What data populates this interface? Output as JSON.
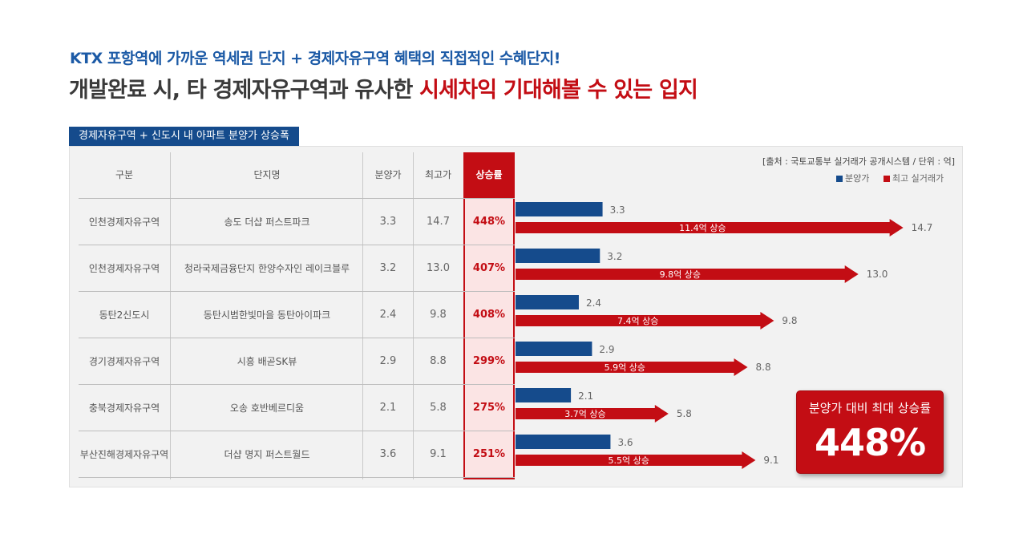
{
  "headline": {
    "line1": "KTX 포항역에 가까운 역세권 단지 + 경제자유구역 혜택의 직접적인 수혜단지!",
    "line2_part1": "개발완료 시, 타 경제자유구역과 유사한 ",
    "line2_highlight": "시세차익 기대해볼 수 있는 입지"
  },
  "table_title": "경제자유구역 + 신도시 내 아파트 분양가 상승폭",
  "source_note": "[출처 : 국토교통부 실거래가 공개시스템 / 단위 : 억]",
  "columns": [
    "구분",
    "단지명",
    "분양가",
    "최고가",
    "상승률"
  ],
  "rows": [
    {
      "region": "인천경제자유구역",
      "complex": "송도 더샵 퍼스트파크",
      "sale": "3.3",
      "max": "14.7",
      "rate": "448%"
    },
    {
      "region": "인천경제자유구역",
      "complex": "청라국제금융단지 한양수자인 레이크블루",
      "sale": "3.2",
      "max": "13.0",
      "rate": "407%"
    },
    {
      "region": "동탄2신도시",
      "complex": "동탄시범한빛마을 동탄아이파크",
      "sale": "2.4",
      "max": "9.8",
      "rate": "408%"
    },
    {
      "region": "경기경제자유구역",
      "complex": "시흥 배곧SK뷰",
      "sale": "2.9",
      "max": "8.8",
      "rate": "299%"
    },
    {
      "region": "충북경제자유구역",
      "complex": "오송 호반베르디움",
      "sale": "2.1",
      "max": "5.8",
      "rate": "275%"
    },
    {
      "region": "부산진해경제자유구역",
      "complex": "더샵 명지 퍼스트월드",
      "sale": "3.6",
      "max": "9.1",
      "rate": "251%"
    }
  ],
  "callout": {
    "title": "분양가 대비 최대 상승률",
    "value": "448%"
  },
  "chart_data": {
    "type": "bar",
    "orientation": "horizontal",
    "categories": [
      "송도 더샵 퍼스트파크",
      "청라국제금융단지 한양수자인 레이크블루",
      "동탄시범한빛마을 동탄아이파크",
      "시흥 배곧SK뷰",
      "오송 호반베르디움",
      "더샵 명지 퍼스트월드"
    ],
    "series": [
      {
        "name": "분양가",
        "color": "#154b8c",
        "values": [
          3.3,
          3.2,
          2.4,
          2.9,
          2.1,
          3.6
        ],
        "labels": [
          "3.3",
          "3.2",
          "2.4",
          "2.9",
          "2.1",
          "3.6"
        ]
      },
      {
        "name": "최고 실거래가",
        "color": "#c30d14",
        "values": [
          14.7,
          13.0,
          9.8,
          8.8,
          5.8,
          9.1
        ],
        "labels": [
          "14.7",
          "13.0",
          "9.8",
          "8.8",
          "5.8",
          "9.1"
        ]
      }
    ],
    "annotations": [
      "11.4억 상승",
      "9.8억 상승",
      "7.4억 상승",
      "5.9억 상승",
      "3.7억 상승",
      "5.5억 상승"
    ],
    "legend_position": "top-right",
    "grid": false
  }
}
